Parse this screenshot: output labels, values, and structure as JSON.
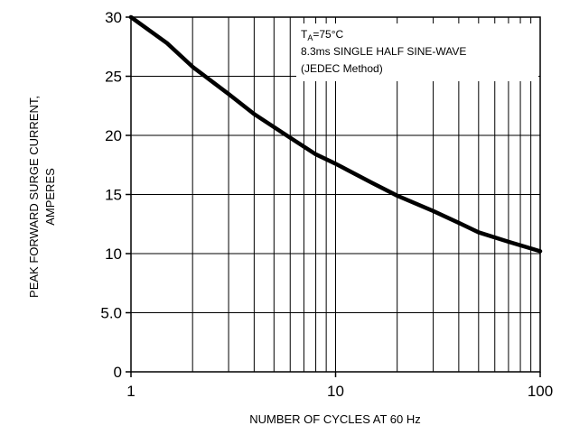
{
  "chart_data": {
    "type": "line",
    "title": "",
    "xlabel": "NUMBER OF CYCLES AT 60 Hz",
    "ylabel_lines": [
      "PEAK FORWARD SURGE CURRENT,",
      "AMPERES"
    ],
    "x_scale": "log",
    "xlim": [
      1,
      100
    ],
    "ylim": [
      0,
      30
    ],
    "x_tick_labels": [
      {
        "value": 1,
        "label": "1"
      },
      {
        "value": 10,
        "label": "10"
      },
      {
        "value": 100,
        "label": "100"
      }
    ],
    "y_tick_labels": [
      {
        "value": 0,
        "label": "0"
      },
      {
        "value": 5,
        "label": "5.0"
      },
      {
        "value": 10,
        "label": "10"
      },
      {
        "value": 15,
        "label": "15"
      },
      {
        "value": 20,
        "label": "20"
      },
      {
        "value": 25,
        "label": "25"
      },
      {
        "value": 30,
        "label": "30"
      }
    ],
    "grid": true,
    "legend": "none",
    "annotation": {
      "ta_main": "T",
      "ta_sub": "A",
      "ta_rest": "=75°C",
      "line2": "8.3ms SINGLE HALF SINE-WAVE",
      "line3": "(JEDEC Method)"
    },
    "series": [
      {
        "x": [
          1,
          1.5,
          2,
          3,
          4,
          6,
          8,
          10,
          15,
          20,
          30,
          40,
          50,
          70,
          100
        ],
        "y": [
          30,
          27.8,
          25.8,
          23.5,
          21.8,
          19.8,
          18.4,
          17.6,
          16.0,
          14.9,
          13.6,
          12.6,
          11.8,
          11.0,
          10.2
        ]
      }
    ],
    "colors": {
      "line": "#000000",
      "grid": "#000000",
      "background": "#ffffff"
    }
  }
}
